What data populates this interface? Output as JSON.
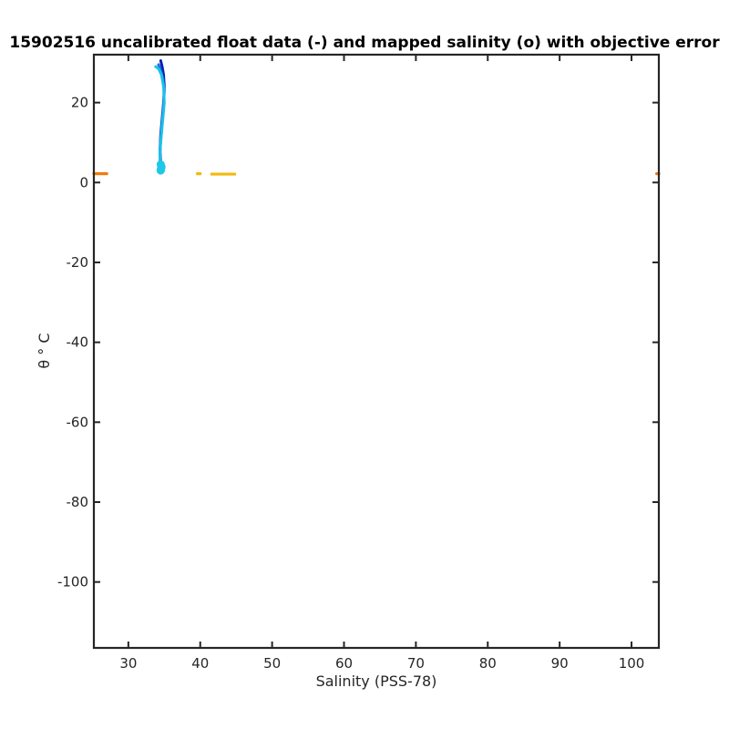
{
  "chart_data": {
    "type": "line",
    "title": "15902516 uncalibrated float data (-) and mapped salinity (o) with objective error",
    "xlabel": "Salinity (PSS-78)",
    "ylabel": "θ ° C",
    "xlim": [
      25.2,
      103.8
    ],
    "ylim": [
      -116.5,
      32
    ],
    "x_ticks": [
      30,
      40,
      50,
      60,
      70,
      80,
      90,
      100
    ],
    "y_ticks": [
      20,
      0,
      -20,
      -40,
      -60,
      -80,
      -100
    ],
    "grid": false,
    "colors": {
      "profile_dark": "#0a1fb8",
      "profile_mid": "#1d6fe0",
      "profile_light": "#19c2e8",
      "mapped": "#1ec8e6",
      "outlier_orange": "#f07a12",
      "outlier_yellow": "#f2b90f"
    },
    "series": [
      {
        "color_key": "profile_dark",
        "x": [
          34.5,
          34.7,
          34.9,
          35.0,
          34.9,
          34.7,
          34.5,
          34.4,
          34.5,
          34.6
        ],
        "y": [
          30.5,
          29.0,
          27.0,
          24.0,
          20.0,
          16.0,
          12.0,
          8.0,
          5.0,
          3.0
        ]
      },
      {
        "color_key": "profile_mid",
        "x": [
          34.2,
          34.5,
          34.8,
          35.0,
          34.9,
          34.7,
          34.5,
          34.4,
          34.5
        ],
        "y": [
          29.5,
          28.0,
          26.0,
          23.0,
          19.0,
          15.0,
          11.0,
          7.0,
          4.0
        ]
      },
      {
        "color_key": "profile_light",
        "x": [
          33.8,
          34.2,
          34.6,
          34.9,
          35.0,
          34.8,
          34.6,
          34.4,
          34.4,
          34.6
        ],
        "y": [
          29.0,
          28.5,
          27.0,
          24.0,
          20.0,
          16.0,
          12.0,
          8.0,
          5.0,
          3.0
        ]
      },
      {
        "color_key": "outlier_orange",
        "x": [
          25.2,
          27.0
        ],
        "y": [
          2.2,
          2.2
        ]
      },
      {
        "color_key": "outlier_orange",
        "x": [
          103.5,
          103.8
        ],
        "y": [
          2.2,
          2.2
        ]
      },
      {
        "color_key": "outlier_yellow",
        "x": [
          41.6,
          44.8
        ],
        "y": [
          2.1,
          2.1
        ]
      },
      {
        "color_key": "outlier_yellow",
        "x": [
          39.6,
          40.0
        ],
        "y": [
          2.2,
          2.2
        ]
      }
    ],
    "mapped_points": {
      "color_key": "mapped",
      "x": [
        34.5,
        34.6,
        34.5,
        34.6,
        34.5
      ],
      "y": [
        4.5,
        3.8,
        3.2,
        4.0,
        3.0
      ]
    }
  }
}
